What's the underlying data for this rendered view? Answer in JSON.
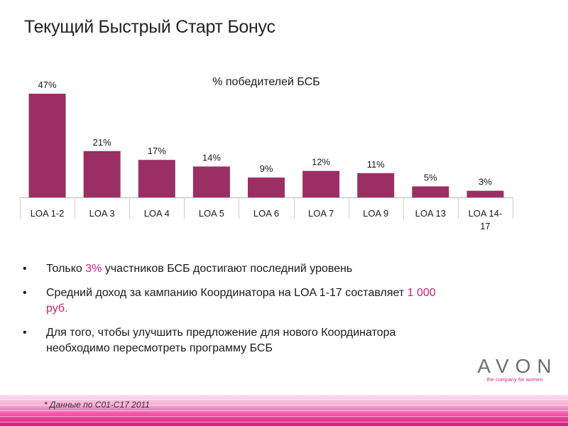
{
  "slide": {
    "title": "Текущий Быстрый Старт Бонус",
    "footnote": "* Данные по С01-С17 2011"
  },
  "chart_data": {
    "type": "bar",
    "title": "% победителей БСБ",
    "categories": [
      "LOA 1-2",
      "LOA 3",
      "LOA 4",
      "LOA 5",
      "LOA 6",
      "LOA 7",
      "LOA 9",
      "LOA 13",
      "LOA 14-17"
    ],
    "category_lines": [
      [
        "LOA 1-2"
      ],
      [
        "LOA 3"
      ],
      [
        "LOA 4"
      ],
      [
        "LOA 5"
      ],
      [
        "LOA 6"
      ],
      [
        "LOA 7"
      ],
      [
        "LOA 9"
      ],
      [
        "LOA 13"
      ],
      [
        "LOA 14-",
        "17"
      ]
    ],
    "values": [
      47,
      21,
      17,
      14,
      9,
      12,
      11,
      5,
      3
    ],
    "value_labels": [
      "47%",
      "21%",
      "17%",
      "14%",
      "9%",
      "12%",
      "11%",
      "5%",
      "3%"
    ],
    "ylim": [
      0,
      47
    ],
    "grid": false,
    "bar_color": "#9b2f64"
  },
  "bullets": [
    {
      "parts": [
        {
          "text": "Только "
        },
        {
          "text": "3%",
          "hl": true
        },
        {
          "text": " участников БСБ достигают последний уровень"
        }
      ]
    },
    {
      "parts": [
        {
          "text": "Средний доход за кампанию Координатора на LOA 1-17 составляет "
        },
        {
          "text": "1 000 руб.",
          "hl": true
        }
      ]
    },
    {
      "parts": [
        {
          "text": "Для того, чтобы улучшить предложение для нового Координатора необходимо пересмотреть программу БСБ"
        }
      ]
    }
  ],
  "logo": {
    "wordmark": "AVON",
    "tagline": "the company for women"
  },
  "colors": {
    "accent": "#c8207a",
    "bar": "#9b2f64"
  }
}
